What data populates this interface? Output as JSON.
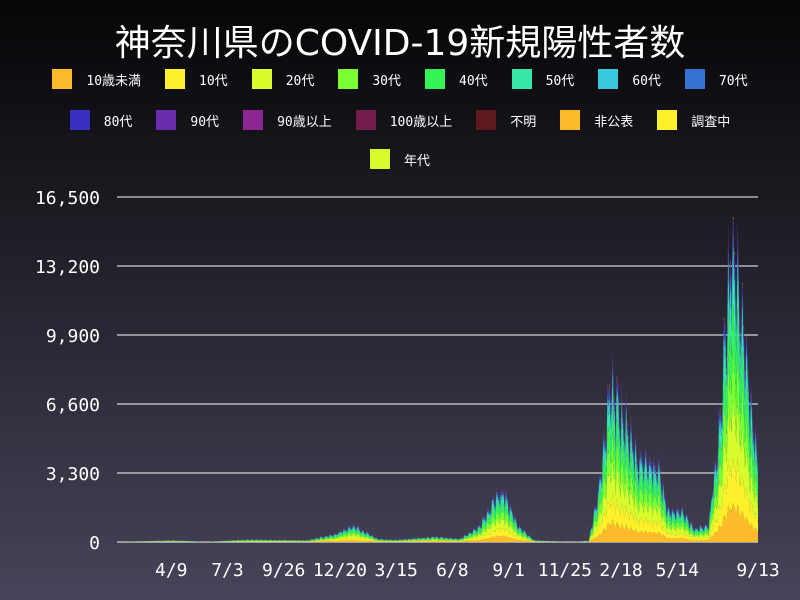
{
  "chart_data": {
    "type": "bar",
    "stacked": true,
    "title": "神奈川県のCOVID-19新規陽性者数",
    "xlabel": "",
    "ylabel": "",
    "ylim": [
      0,
      16500
    ],
    "yticks": [
      0,
      3300,
      6600,
      9900,
      13200,
      16500
    ],
    "ytick_labels": [
      "0",
      "3,300",
      "6,600",
      "9,900",
      "13,200",
      "16,500"
    ],
    "xlim": [
      "2020-01-18",
      "2022-09-13"
    ],
    "xtick_dates": [
      "2020-04-09",
      "2020-07-03",
      "2020-09-26",
      "2020-12-20",
      "2021-03-15",
      "2021-06-08",
      "2021-09-01",
      "2021-11-25",
      "2022-02-18",
      "2022-05-14",
      "2022-09-13"
    ],
    "xtick_labels": [
      "4/9",
      "7/3",
      "9/26",
      "12/20",
      "3/15",
      "6/8",
      "9/1",
      "11/25",
      "2/18",
      "5/14",
      "9/13"
    ],
    "grid": "horizontal",
    "legend_placement": "top",
    "dates": [
      "2020-01-18",
      "2020-04-10",
      "2020-06-01",
      "2020-08-05",
      "2020-11-01",
      "2020-12-15",
      "2021-01-10",
      "2021-02-15",
      "2021-03-15",
      "2021-05-10",
      "2021-06-20",
      "2021-07-20",
      "2021-08-10",
      "2021-08-25",
      "2021-09-15",
      "2021-10-10",
      "2021-12-01",
      "2021-12-31",
      "2022-01-15",
      "2022-02-01",
      "2022-02-15",
      "2022-03-01",
      "2022-03-15",
      "2022-04-01",
      "2022-04-15",
      "2022-04-30",
      "2022-05-20",
      "2022-06-10",
      "2022-06-30",
      "2022-07-15",
      "2022-07-30",
      "2022-08-05",
      "2022-08-20",
      "2022-09-01",
      "2022-09-13"
    ],
    "total": [
      0,
      80,
      10,
      120,
      80,
      400,
      800,
      150,
      100,
      250,
      150,
      800,
      2000,
      2400,
      800,
      80,
      5,
      50,
      2500,
      7500,
      6500,
      5500,
      4000,
      3800,
      3500,
      1500,
      1500,
      600,
      800,
      5000,
      12000,
      14500,
      11000,
      7000,
      4000
    ],
    "series": [
      {
        "name": "10歳未満",
        "color": "#fdbb2a",
        "share_percent": 12
      },
      {
        "name": "10代",
        "color": "#fef12c",
        "share_percent": 14
      },
      {
        "name": "20代",
        "color": "#d9fd2c",
        "share_percent": 18
      },
      {
        "name": "30代",
        "color": "#7afd32",
        "share_percent": 15
      },
      {
        "name": "40代",
        "color": "#36f355",
        "share_percent": 15
      },
      {
        "name": "50代",
        "color": "#36e8a6",
        "share_percent": 11
      },
      {
        "name": "60代",
        "color": "#36c8dc",
        "share_percent": 6
      },
      {
        "name": "70代",
        "color": "#3672d2",
        "share_percent": 4
      },
      {
        "name": "80代",
        "color": "#3a2fc0",
        "share_percent": 3
      },
      {
        "name": "90代",
        "color": "#6b2cae",
        "share_percent": 1
      },
      {
        "name": "90歳以上",
        "color": "#8c2693",
        "share_percent": 0.5
      },
      {
        "name": "100歳以上",
        "color": "#741d4c",
        "share_percent": 0.1
      },
      {
        "name": "不明",
        "color": "#5e1a1e",
        "share_percent": 0.2
      },
      {
        "name": "非公表",
        "color": "#fdbb2a",
        "share_percent": 0.2
      },
      {
        "name": "調査中",
        "color": "#fef12c",
        "share_percent": 0.3
      },
      {
        "name": "年代",
        "color": "#d9fd2c",
        "share_percent": 0
      }
    ]
  }
}
